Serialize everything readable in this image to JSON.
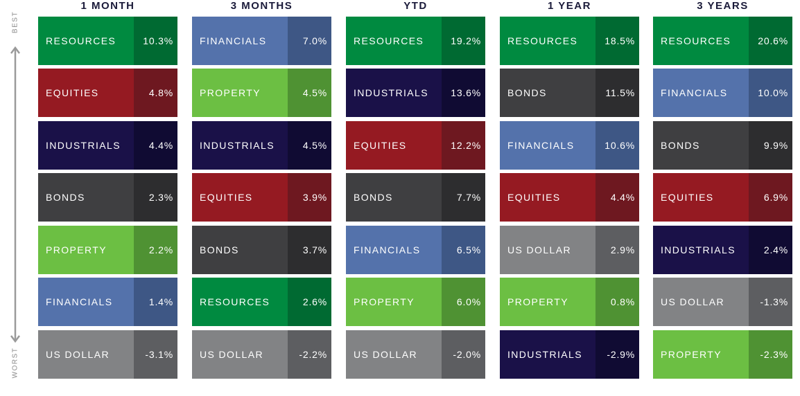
{
  "side_labels": {
    "best": "BEST",
    "worst": "WORST"
  },
  "colors": {
    "RESOURCES": {
      "main": "#008a40",
      "dark": "#006a32"
    },
    "EQUITIES": {
      "main": "#951a22",
      "dark": "#6e1820"
    },
    "INDUSTRIALS": {
      "main": "#1a1148",
      "dark": "#100b33"
    },
    "BONDS": {
      "main": "#3f3f41",
      "dark": "#2d2d2f"
    },
    "PROPERTY": {
      "main": "#6cbf43",
      "dark": "#4f9233"
    },
    "FINANCIALS": {
      "main": "#5472ab",
      "dark": "#3e5785"
    },
    "US DOLLAR": {
      "main": "#828385",
      "dark": "#5d5e61"
    }
  },
  "chart_data": {
    "type": "table",
    "columns": [
      {
        "title": "1 MONTH",
        "rows": [
          {
            "name": "RESOURCES",
            "value": "10.3%"
          },
          {
            "name": "EQUITIES",
            "value": "4.8%"
          },
          {
            "name": "INDUSTRIALS",
            "value": "4.4%"
          },
          {
            "name": "BONDS",
            "value": "2.3%"
          },
          {
            "name": "PROPERTY",
            "value": "2.2%"
          },
          {
            "name": "FINANCIALS",
            "value": "1.4%"
          },
          {
            "name": "US DOLLAR",
            "value": "-3.1%"
          }
        ]
      },
      {
        "title": "3 MONTHS",
        "rows": [
          {
            "name": "FINANCIALS",
            "value": "7.0%"
          },
          {
            "name": "PROPERTY",
            "value": "4.5%"
          },
          {
            "name": "INDUSTRIALS",
            "value": "4.5%"
          },
          {
            "name": "EQUITIES",
            "value": "3.9%"
          },
          {
            "name": "BONDS",
            "value": "3.7%"
          },
          {
            "name": "RESOURCES",
            "value": "2.6%"
          },
          {
            "name": "US DOLLAR",
            "value": "-2.2%"
          }
        ]
      },
      {
        "title": "YTD",
        "rows": [
          {
            "name": "RESOURCES",
            "value": "19.2%"
          },
          {
            "name": "INDUSTRIALS",
            "value": "13.6%"
          },
          {
            "name": "EQUITIES",
            "value": "12.2%"
          },
          {
            "name": "BONDS",
            "value": "7.7%"
          },
          {
            "name": "FINANCIALS",
            "value": "6.5%"
          },
          {
            "name": "PROPERTY",
            "value": "6.0%"
          },
          {
            "name": "US DOLLAR",
            "value": "-2.0%"
          }
        ]
      },
      {
        "title": "1 YEAR",
        "rows": [
          {
            "name": "RESOURCES",
            "value": "18.5%"
          },
          {
            "name": "BONDS",
            "value": "11.5%"
          },
          {
            "name": "FINANCIALS",
            "value": "10.6%"
          },
          {
            "name": "EQUITIES",
            "value": "4.4%"
          },
          {
            "name": "US DOLLAR",
            "value": "2.9%"
          },
          {
            "name": "PROPERTY",
            "value": "0.8%"
          },
          {
            "name": "INDUSTRIALS",
            "value": "-2.9%"
          }
        ]
      },
      {
        "title": "3 YEARS",
        "rows": [
          {
            "name": "RESOURCES",
            "value": "20.6%"
          },
          {
            "name": "FINANCIALS",
            "value": "10.0%"
          },
          {
            "name": "BONDS",
            "value": "9.9%"
          },
          {
            "name": "EQUITIES",
            "value": "6.9%"
          },
          {
            "name": "INDUSTRIALS",
            "value": "2.4%"
          },
          {
            "name": "US DOLLAR",
            "value": "-1.3%"
          },
          {
            "name": "PROPERTY",
            "value": "-2.3%"
          }
        ]
      }
    ]
  }
}
